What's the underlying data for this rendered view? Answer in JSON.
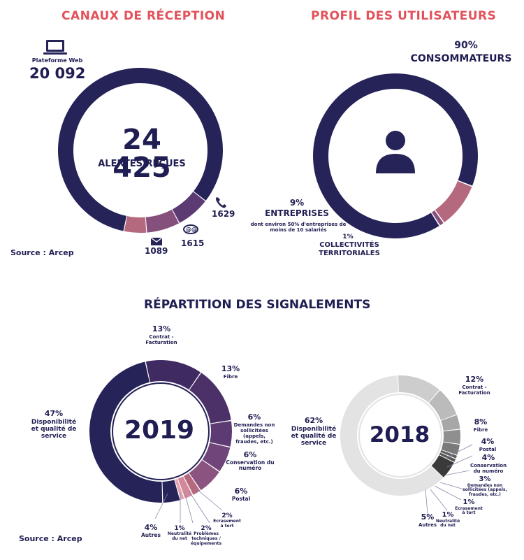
{
  "colors": {
    "navy": "#252358",
    "purple_dark": "#3f2a61",
    "purple": "#5c3b73",
    "mauve": "#86507d",
    "pink": "#b5697f",
    "rose": "#e6a0af",
    "accent_red": "#e2525a",
    "gray_light": "#e3e3e3",
    "gray_mid": "#cdcdcd",
    "gray": "#a7a7a7",
    "gray_dark": "#7a7a7a",
    "gray_darker": "#555555",
    "gray_black": "#3a3a3a"
  },
  "titles": {
    "channels": "CANAUX DE RÉCEPTION",
    "profile": "PROFIL DES UTILISATEURS",
    "breakdown": "RÉPARTITION DES SIGNALEMENTS"
  },
  "channels": {
    "web_label": "Plateforme Web",
    "web_value": "20 092",
    "total_value": "24 425",
    "total_label": "ALERTES REÇUES",
    "phone_value": "1629",
    "fax_value": "1615",
    "mail_value": "1089",
    "source": "Source : Arcep"
  },
  "profile": {
    "consumers_pct": "90%",
    "consumers_label": "CONSOMMATEURS",
    "companies_pct": "9%",
    "companies_label": "ENTREPRISES",
    "companies_note": "dont environ 50% d'entreprises de moins de 10 salariés",
    "local_pct": "1%",
    "local_label": "COLLECTIVITÉS TERRITORIALES"
  },
  "breakdown": {
    "source": "Source : Arcep",
    "y2019": {
      "year": "2019",
      "labels": {
        "contrat": [
          "13%",
          "Contrat -",
          "Facturation"
        ],
        "fibre": [
          "13%",
          "Fibre"
        ],
        "demandes": [
          "6%",
          "Demandes non",
          "sollicitées (appels,",
          "fraudes, etc.)"
        ],
        "conservation": [
          "6%",
          "Conservation du",
          "numéro"
        ],
        "postal": [
          "6%",
          "Postal"
        ],
        "ecrasement": [
          "2%",
          "Ecrasement",
          "à tort"
        ],
        "problemes": [
          "2%",
          "Problèmes",
          "techniques /",
          "équipements"
        ],
        "neutralite": [
          "1%",
          "Neutralité",
          "du net"
        ],
        "autres": [
          "4%",
          "Autres"
        ],
        "dispo": [
          "47%",
          "Disponibilité",
          "et qualité de",
          "service"
        ]
      }
    },
    "y2018": {
      "year": "2018",
      "labels": {
        "contrat": [
          "12%",
          "Contrat -",
          "Facturation"
        ],
        "fibre": [
          "8%",
          "Fibre"
        ],
        "postal": [
          "4%",
          "Postal"
        ],
        "conservation": [
          "4%",
          "Conservation",
          "du numéro"
        ],
        "demandes": [
          "3%",
          "Demandes non",
          "sollicitées (appels,",
          "fraudes, etc.)"
        ],
        "ecrasement": [
          "1%",
          "Ecrasement",
          "à tort"
        ],
        "neutralite": [
          "1%",
          "Neutralité",
          "du net"
        ],
        "autres": [
          "5%",
          "Autres"
        ],
        "dispo": [
          "62%",
          "Disponibilité",
          "et qualité de",
          "service"
        ]
      }
    }
  },
  "chart_data": [
    {
      "type": "pie",
      "title": "CANAUX DE RÉCEPTION",
      "center_label": "24 425 ALERTES REÇUES",
      "categories": [
        "Plateforme Web",
        "Téléphone",
        "Fax",
        "Courrier"
      ],
      "values": [
        20092,
        1629,
        1615,
        1089
      ],
      "colors": [
        "#252358",
        "#5c3b73",
        "#86507d",
        "#b5697f"
      ]
    },
    {
      "type": "pie",
      "title": "PROFIL DES UTILISATEURS",
      "categories": [
        "CONSOMMATEURS",
        "ENTREPRISES",
        "COLLECTIVITÉS TERRITORIALES"
      ],
      "values": [
        90,
        9,
        1
      ],
      "colors": [
        "#252358",
        "#b5697f",
        "#86507d"
      ]
    },
    {
      "type": "pie",
      "title": "RÉPARTITION DES SIGNALEMENTS 2019",
      "categories": [
        "Contrat - Facturation",
        "Fibre",
        "Demandes non sollicitées (appels, fraudes, etc.)",
        "Conservation du numéro",
        "Postal",
        "Ecrasement à tort",
        "Problèmes techniques / équipements",
        "Neutralité du net",
        "Autres",
        "Disponibilité et qualité de service"
      ],
      "values": [
        13,
        13,
        6,
        6,
        6,
        2,
        2,
        1,
        4,
        47
      ],
      "colors": [
        "#3f2a61",
        "#4b3168",
        "#5c3b73",
        "#70457a",
        "#8a5380",
        "#b5697f",
        "#d4899a",
        "#e6a0af",
        "#252358",
        "#252358"
      ]
    },
    {
      "type": "pie",
      "title": "RÉPARTITION DES SIGNALEMENTS 2018",
      "categories": [
        "Contrat - Facturation",
        "Fibre",
        "Postal",
        "Conservation du numéro",
        "Demandes non sollicitées (appels, fraudes, etc.)",
        "Ecrasement à tort",
        "Neutralité du net",
        "Autres",
        "Disponibilité et qualité de service"
      ],
      "values": [
        12,
        8,
        4,
        4,
        3,
        1,
        1,
        5,
        62
      ],
      "colors": [
        "#cdcdcd",
        "#bbbbbb",
        "#a7a7a7",
        "#8f8f8f",
        "#7a7a7a",
        "#5f5f5f",
        "#555555",
        "#3a3a3a",
        "#e3e3e3"
      ]
    }
  ]
}
